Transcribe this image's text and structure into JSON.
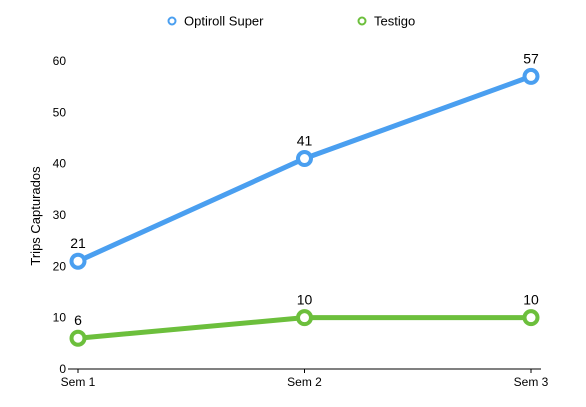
{
  "chart_data": {
    "type": "line",
    "categories": [
      "Sem 1",
      "Sem 2",
      "Sem 3"
    ],
    "series": [
      {
        "name": "Optiroll Super",
        "values": [
          21,
          41,
          57
        ],
        "color": "#4a9ff0"
      },
      {
        "name": "Testigo",
        "values": [
          6,
          10,
          10
        ],
        "color": "#6cbf3c"
      }
    ],
    "title": "",
    "xlabel": "",
    "ylabel": "Trips Capturados",
    "ylim": [
      0,
      60
    ],
    "yticks": [
      0,
      10,
      20,
      30,
      40,
      50,
      60
    ],
    "grid": false,
    "legend": "top-center"
  }
}
